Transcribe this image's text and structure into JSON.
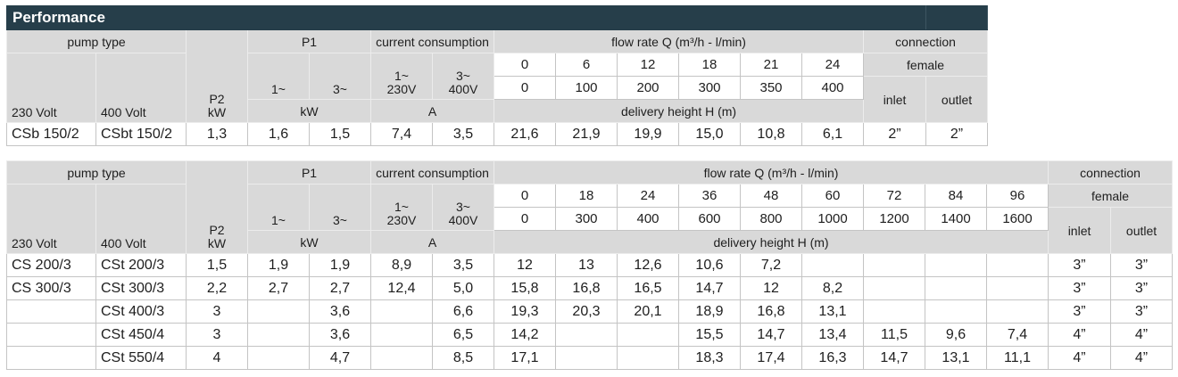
{
  "title": "Performance",
  "headers": {
    "pump_type": "pump type",
    "volt_230": "230 Volt",
    "volt_400": "400 Volt",
    "p2": "P2",
    "p2_unit": "kW",
    "p1": "P1",
    "p1_single": "1~",
    "p1_three": "3~",
    "p1_unit": "kW",
    "current": "current consumption",
    "current_single": "1~",
    "current_single_v": "230V",
    "current_three": "3~",
    "current_three_v": "400V",
    "current_unit": "A",
    "flow": "flow rate Q (m³/h - l/min)",
    "delivery": "delivery height H (m)",
    "connection": "connection",
    "female": "female",
    "inlet": "inlet",
    "outlet": "outlet"
  },
  "tables": [
    {
      "flow_m3h": [
        "0",
        "6",
        "12",
        "18",
        "21",
        "24"
      ],
      "flow_lmin": [
        "0",
        "100",
        "200",
        "300",
        "350",
        "400"
      ],
      "rows": [
        {
          "v230": "CSb 150/2",
          "v400": "CSbt 150/2",
          "p2": "1,3",
          "p1_1": "1,6",
          "p1_3": "1,5",
          "a_1": "7,4",
          "a_3": "3,5",
          "heights": [
            "21,6",
            "21,9",
            "19,9",
            "15,0",
            "10,8",
            "6,1"
          ],
          "inlet": "2”",
          "outlet": "2”"
        }
      ]
    },
    {
      "flow_m3h": [
        "0",
        "18",
        "24",
        "36",
        "48",
        "60",
        "72",
        "84",
        "96"
      ],
      "flow_lmin": [
        "0",
        "300",
        "400",
        "600",
        "800",
        "1000",
        "1200",
        "1400",
        "1600"
      ],
      "rows": [
        {
          "v230": "CS 200/3",
          "v400": "CSt 200/3",
          "p2": "1,5",
          "p1_1": "1,9",
          "p1_3": "1,9",
          "a_1": "8,9",
          "a_3": "3,5",
          "heights": [
            "12",
            "13",
            "12,6",
            "10,6",
            "7,2",
            "",
            "",
            "",
            ""
          ],
          "inlet": "3”",
          "outlet": "3”"
        },
        {
          "v230": "CS 300/3",
          "v400": "CSt 300/3",
          "p2": "2,2",
          "p1_1": "2,7",
          "p1_3": "2,7",
          "a_1": "12,4",
          "a_3": "5,0",
          "heights": [
            "15,8",
            "16,8",
            "16,5",
            "14,7",
            "12",
            "8,2",
            "",
            "",
            ""
          ],
          "inlet": "3”",
          "outlet": "3”"
        },
        {
          "v230": "",
          "v400": "CSt 400/3",
          "p2": "3",
          "p1_1": "",
          "p1_3": "3,6",
          "a_1": "",
          "a_3": "6,6",
          "heights": [
            "19,3",
            "20,3",
            "20,1",
            "18,9",
            "16,8",
            "13,1",
            "",
            "",
            ""
          ],
          "inlet": "3”",
          "outlet": "3”"
        },
        {
          "v230": "",
          "v400": "CSt 450/4",
          "p2": "3",
          "p1_1": "",
          "p1_3": "3,6",
          "a_1": "",
          "a_3": "6,5",
          "heights": [
            "14,2",
            "",
            "",
            "15,5",
            "14,7",
            "13,4",
            "11,5",
            "9,6",
            "7,4"
          ],
          "inlet": "4”",
          "outlet": "4”"
        },
        {
          "v230": "",
          "v400": "CSt 550/4",
          "p2": "4",
          "p1_1": "",
          "p1_3": "4,7",
          "a_1": "",
          "a_3": "8,5",
          "heights": [
            "17,1",
            "",
            "",
            "18,3",
            "17,4",
            "16,3",
            "14,7",
            "13,1",
            "11,1"
          ],
          "inlet": "4”",
          "outlet": "4”"
        }
      ]
    }
  ]
}
